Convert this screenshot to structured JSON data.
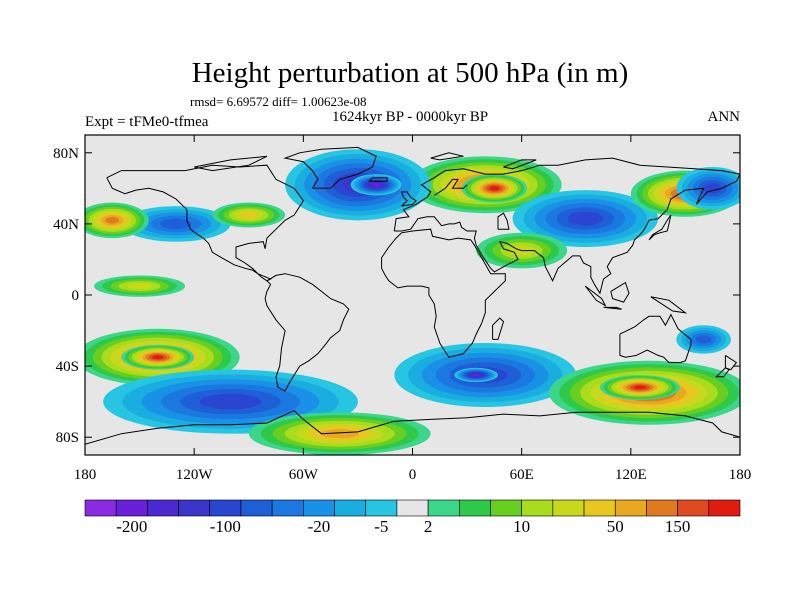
{
  "chart_data": {
    "type": "heatmap",
    "title": "Height perturbation at 500 hPa (in m)",
    "stats_line": "rmsd= 6.69572 diff= 1.00623e-08",
    "left_label": "Expt = tFMe0-tfmea",
    "center_label": "1624kyr BP - 0000kyr BP",
    "right_label": "ANN",
    "x_tick_labels": [
      "180",
      "120W",
      "60W",
      "0",
      "60E",
      "120E",
      "180"
    ],
    "x_tick_values": [
      -180,
      -120,
      -60,
      0,
      60,
      120,
      180
    ],
    "y_tick_labels": [
      "80N",
      "40N",
      "0",
      "40S",
      "80S"
    ],
    "y_tick_values": [
      80,
      40,
      0,
      -40,
      -80
    ],
    "xlim": [
      -180,
      180
    ],
    "ylim": [
      -90,
      90
    ],
    "colorbar_labels": [
      "-200",
      "-100",
      "-20",
      "-5",
      "2",
      "10",
      "50",
      "150"
    ],
    "colorbar_colors": [
      "#8a2be2",
      "#6a1fd8",
      "#4a2ad0",
      "#3a35c8",
      "#2a45cf",
      "#1e5ed6",
      "#1a78e0",
      "#1891e6",
      "#1aaee0",
      "#26c6e2",
      "#e6e6e6",
      "#3cd68a",
      "#2ec84a",
      "#68cf20",
      "#a8dc1c",
      "#c8d81c",
      "#e8c820",
      "#e8a820",
      "#e07a20",
      "#e04a20",
      "#e01c10"
    ],
    "field_features": [
      {
        "lon": 40,
        "lat": 62,
        "rx": 42,
        "ry": 16,
        "level": 9
      },
      {
        "lon": 45,
        "lat": 60,
        "rx": 18,
        "ry": 8,
        "level": 10
      },
      {
        "lon": -30,
        "lat": 62,
        "rx": 40,
        "ry": 20,
        "level": -7
      },
      {
        "lon": -20,
        "lat": 62,
        "rx": 14,
        "ry": 6,
        "level": -9
      },
      {
        "lon": 95,
        "lat": 43,
        "rx": 40,
        "ry": 16,
        "level": -6
      },
      {
        "lon": 150,
        "lat": 57,
        "rx": 30,
        "ry": 13,
        "level": 9
      },
      {
        "lon": 165,
        "lat": 60,
        "rx": 20,
        "ry": 12,
        "level": -6
      },
      {
        "lon": -130,
        "lat": 40,
        "rx": 30,
        "ry": 10,
        "level": -5
      },
      {
        "lon": -165,
        "lat": 42,
        "rx": 20,
        "ry": 10,
        "level": 8
      },
      {
        "lon": -90,
        "lat": 45,
        "rx": 20,
        "ry": 7,
        "level": 6
      },
      {
        "lon": 60,
        "lat": 25,
        "rx": 25,
        "ry": 10,
        "level": 5
      },
      {
        "lon": -140,
        "lat": -35,
        "rx": 45,
        "ry": 16,
        "level": 9
      },
      {
        "lon": -140,
        "lat": -35,
        "rx": 20,
        "ry": 7,
        "level": 10
      },
      {
        "lon": -100,
        "lat": -60,
        "rx": 70,
        "ry": 18,
        "level": -6
      },
      {
        "lon": 40,
        "lat": -45,
        "rx": 50,
        "ry": 18,
        "level": -6
      },
      {
        "lon": 35,
        "lat": -45,
        "rx": 12,
        "ry": 4,
        "level": -9
      },
      {
        "lon": 130,
        "lat": -55,
        "rx": 55,
        "ry": 18,
        "level": 9
      },
      {
        "lon": 125,
        "lat": -52,
        "rx": 22,
        "ry": 7,
        "level": 10
      },
      {
        "lon": -40,
        "lat": -78,
        "rx": 50,
        "ry": 12,
        "level": 7
      },
      {
        "lon": -150,
        "lat": 5,
        "rx": 25,
        "ry": 6,
        "level": 5
      },
      {
        "lon": 160,
        "lat": -25,
        "rx": 15,
        "ry": 8,
        "level": -5
      }
    ]
  }
}
